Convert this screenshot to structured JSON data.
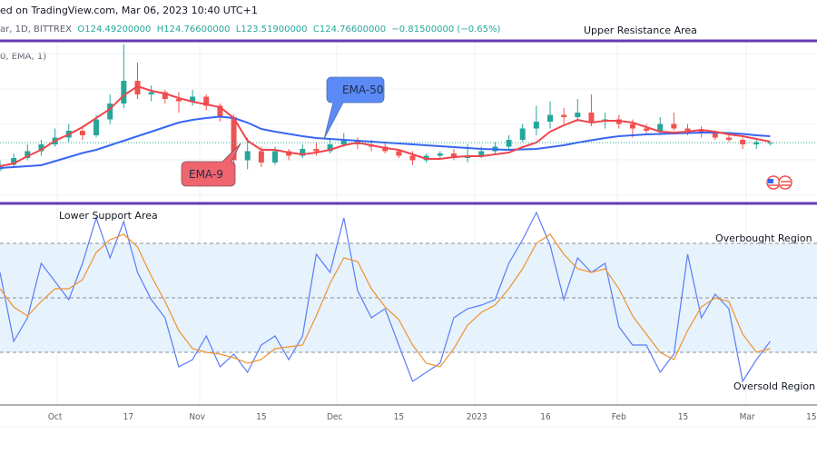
{
  "header": {
    "published": "ed on TradingView.com, Mar 06, 2023 10:40 UTC+1",
    "symbol": "ar, 1D, BITTREX",
    "open": "O124.49200000",
    "high": "H124.76600000",
    "low": "L123.51900000",
    "close": "C124.76600000",
    "change": "−0.81500000 (−0.65%)",
    "indicator": "0, EMA, 1)"
  },
  "annotations": {
    "upper_resistance": "Upper Resistance Area",
    "lower_support": "Lower Support Area",
    "overbought": "Overbought Region",
    "oversold": "Oversold Region",
    "ema50_label": "EMA-50",
    "ema9_label": "EMA-9"
  },
  "colors": {
    "up": "#26a69a",
    "down": "#ef5350",
    "ema9": "#f0454d",
    "ema50": "#3866f2",
    "divider": "#673ab7",
    "osc_fast": "#5b7cf7",
    "osc_slow": "#f0922f",
    "band_fill": "#e6f2fc",
    "ema50_callout": "#5b8af7",
    "ema9_callout": "#f0646e"
  },
  "time_axis": [
    {
      "date": "2022-10-01",
      "label": "Oct"
    },
    {
      "date": "2022-10-17",
      "label": "17"
    },
    {
      "date": "2022-11-01",
      "label": "Nov"
    },
    {
      "date": "2022-11-15",
      "label": "15"
    },
    {
      "date": "2022-12-01",
      "label": "Dec"
    },
    {
      "date": "2022-12-15",
      "label": "15"
    },
    {
      "date": "2023-01-01",
      "label": "2023"
    },
    {
      "date": "2023-01-16",
      "label": "16"
    },
    {
      "date": "2023-02-01",
      "label": "Feb"
    },
    {
      "date": "2023-02-15",
      "label": "15"
    },
    {
      "date": "2023-03-01",
      "label": "Mar"
    },
    {
      "date": "2023-03-15",
      "label": "15"
    }
  ],
  "chart_data": [
    {
      "type": "candlestick",
      "last_close": 124.766,
      "dates": [
        "2022-09-19",
        "2022-09-22",
        "2022-09-25",
        "2022-09-28",
        "2022-10-01",
        "2022-10-04",
        "2022-10-07",
        "2022-10-10",
        "2022-10-13",
        "2022-10-16",
        "2022-10-19",
        "2022-10-22",
        "2022-10-25",
        "2022-10-28",
        "2022-10-31",
        "2022-11-03",
        "2022-11-06",
        "2022-11-09",
        "2022-11-12",
        "2022-11-15",
        "2022-11-18",
        "2022-11-21",
        "2022-11-24",
        "2022-11-27",
        "2022-11-30",
        "2022-12-03",
        "2022-12-06",
        "2022-12-09",
        "2022-12-12",
        "2022-12-15",
        "2022-12-18",
        "2022-12-21",
        "2022-12-24",
        "2022-12-27",
        "2022-12-30",
        "2023-01-02",
        "2023-01-05",
        "2023-01-08",
        "2023-01-11",
        "2023-01-14",
        "2023-01-17",
        "2023-01-20",
        "2023-01-23",
        "2023-01-26",
        "2023-01-29",
        "2023-02-01",
        "2023-02-04",
        "2023-02-07",
        "2023-02-10",
        "2023-02-13",
        "2023-02-16",
        "2023-02-19",
        "2023-02-22",
        "2023-02-25",
        "2023-02-28",
        "2023-03-03",
        "2023-03-06"
      ],
      "ohlc": [
        [
          113,
          117,
          112,
          115
        ],
        [
          115,
          120,
          114,
          118
        ],
        [
          118,
          124,
          117,
          121
        ],
        [
          121,
          126,
          119,
          124
        ],
        [
          124,
          131,
          123,
          127
        ],
        [
          127,
          133,
          125,
          130
        ],
        [
          130,
          132,
          126,
          128
        ],
        [
          128,
          137,
          127,
          135
        ],
        [
          135,
          146,
          133,
          142
        ],
        [
          142,
          168,
          140,
          152
        ],
        [
          152,
          160,
          144,
          146
        ],
        [
          146,
          150,
          143,
          147
        ],
        [
          147,
          148,
          142,
          144
        ],
        [
          144,
          147,
          138,
          143
        ],
        [
          143,
          148,
          141,
          145
        ],
        [
          145,
          146,
          139,
          141
        ],
        [
          141,
          142,
          134,
          136
        ],
        [
          136,
          137,
          112,
          117
        ],
        [
          117,
          127,
          113,
          121
        ],
        [
          121,
          123,
          114,
          116
        ],
        [
          116,
          123,
          115,
          121
        ],
        [
          121,
          122,
          117,
          119
        ],
        [
          119,
          124,
          118,
          122
        ],
        [
          122,
          125,
          119,
          121
        ],
        [
          121,
          126,
          120,
          124
        ],
        [
          124,
          129,
          123,
          126
        ],
        [
          126,
          127,
          122,
          124
        ],
        [
          124,
          126,
          121,
          123
        ],
        [
          123,
          125,
          120,
          121
        ],
        [
          121,
          122,
          118,
          119
        ],
        [
          119,
          121,
          115,
          117
        ],
        [
          117,
          120,
          116,
          119
        ],
        [
          119,
          121,
          118,
          120
        ],
        [
          120,
          122,
          117,
          118
        ],
        [
          118,
          124,
          116,
          119
        ],
        [
          119,
          123,
          118,
          121
        ],
        [
          121,
          125,
          120,
          123
        ],
        [
          123,
          128,
          122,
          126
        ],
        [
          126,
          133,
          125,
          131
        ],
        [
          131,
          141,
          128,
          134
        ],
        [
          134,
          143,
          131,
          137
        ],
        [
          137,
          140,
          133,
          136
        ],
        [
          136,
          144,
          134,
          138
        ],
        [
          138,
          146,
          132,
          134
        ],
        [
          134,
          138,
          131,
          135
        ],
        [
          135,
          137,
          131,
          133
        ],
        [
          133,
          135,
          127,
          131
        ],
        [
          131,
          133,
          128,
          130
        ],
        [
          130,
          136,
          128,
          133
        ],
        [
          133,
          138,
          130,
          131
        ],
        [
          131,
          133,
          128,
          130
        ],
        [
          130,
          132,
          127,
          129
        ],
        [
          129,
          130,
          126,
          127
        ],
        [
          127,
          128,
          125,
          126
        ],
        [
          126,
          127,
          122,
          124
        ],
        [
          124,
          126,
          122,
          125
        ],
        [
          124.492,
          124.766,
          123.519,
          124.766
        ]
      ],
      "series": [
        {
          "name": "EMA-9",
          "values": [
            114.4,
            115.6,
            118.8,
            121.6,
            125.6,
            128.4,
            131.6,
            135.6,
            139.6,
            145.6,
            149.6,
            147.6,
            146.4,
            144.4,
            142.8,
            141.6,
            140.4,
            135.6,
            125.6,
            121.6,
            121.6,
            120.4,
            119.6,
            120.4,
            121.6,
            123.6,
            124.8,
            123.6,
            122.4,
            121.6,
            119.6,
            117.6,
            117.6,
            118.4,
            118.8,
            118.8,
            119.6,
            120.4,
            122.8,
            124.8,
            129.6,
            132.4,
            134.8,
            133.6,
            134.4,
            134.4,
            133.6,
            131.6,
            129.6,
            129.2,
            129.6,
            130.4,
            129.6,
            128.4,
            127.6,
            126.4,
            125.2
          ]
        },
        {
          "name": "EMA-50",
          "values": [
            113.6,
            114.0,
            114.4,
            114.8,
            116.6,
            118.4,
            120.2,
            121.6,
            123.6,
            125.6,
            127.6,
            129.6,
            131.6,
            133.6,
            134.8,
            135.6,
            136.2,
            135.6,
            133.6,
            130.8,
            129.6,
            128.6,
            127.6,
            126.8,
            126.4,
            126.0,
            125.6,
            125.2,
            124.8,
            124.4,
            124.0,
            123.6,
            123.2,
            122.8,
            122.4,
            122.0,
            121.8,
            121.6,
            121.8,
            122.0,
            122.8,
            123.6,
            124.8,
            125.8,
            126.8,
            127.6,
            128.0,
            128.4,
            128.6,
            128.8,
            129.0,
            129.2,
            129.2,
            129.0,
            128.6,
            128.0,
            127.6
          ]
        }
      ]
    },
    {
      "type": "line",
      "ylim": [
        0,
        100
      ],
      "levels": [
        80,
        50,
        20
      ],
      "dates_ref": "same as candlestick dates",
      "series": [
        {
          "values": [
            64,
            26,
            39,
            69,
            59,
            49,
            69,
            94,
            72,
            92,
            64,
            49,
            39,
            12,
            16,
            29,
            12,
            19,
            9,
            24,
            29,
            16,
            29,
            74,
            64,
            94,
            54,
            39,
            44,
            24,
            4,
            9,
            14,
            39,
            44,
            46,
            49,
            69,
            82,
            97,
            79,
            49,
            72,
            64,
            69,
            34,
            24,
            24,
            9,
            19,
            74,
            39,
            52,
            44,
            4,
            16,
            26
          ]
        },
        {
          "values": [
            55,
            45,
            40,
            48,
            55,
            55,
            60,
            75,
            82,
            85,
            78,
            62,
            48,
            32,
            22,
            20,
            19,
            17,
            14,
            16,
            22,
            23,
            24,
            40,
            58,
            72,
            70,
            55,
            45,
            38,
            24,
            14,
            12,
            22,
            35,
            42,
            46,
            55,
            66,
            80,
            85,
            74,
            66,
            64,
            66,
            55,
            40,
            30,
            20,
            16,
            32,
            45,
            50,
            48,
            30,
            20,
            22
          ]
        }
      ]
    }
  ]
}
